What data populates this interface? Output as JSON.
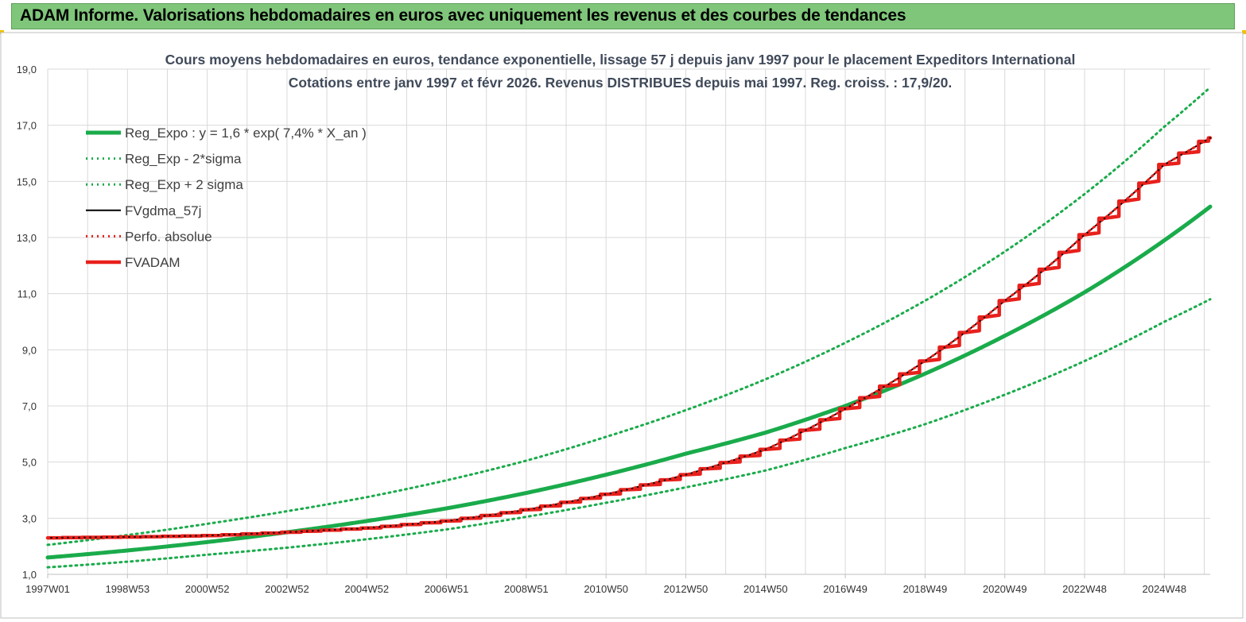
{
  "header": {
    "title": "ADAM Informe. Valorisations hebdomadaires en euros avec uniquement les revenus et des courbes de tendances"
  },
  "colors": {
    "banner": "#7fc67a",
    "trend_green": "#1aab4b",
    "fvgdma_black": "#000000",
    "fvadam_red": "#e8201c",
    "perfo_red": "#e8201c",
    "grid": "#d9d9d9"
  },
  "chart_data": {
    "type": "line",
    "title": [
      "Cours moyens hebdomadaires en euros, tendance exponentielle, lissage 57 j depuis janv 1997 pour le placement Expeditors International",
      "Cotations entre janv 1997 et févr 2026. Revenus DISTRIBUES depuis mai 1997. Reg. croiss. : 17,9/20."
    ],
    "xlabel": "",
    "ylabel": "",
    "x_range_years": [
      1997.0,
      2026.15
    ],
    "ylim": [
      1.0,
      19.0
    ],
    "y_ticks": [
      "1,0",
      "3,0",
      "5,0",
      "7,0",
      "9,0",
      "11,0",
      "13,0",
      "15,0",
      "17,0",
      "19,0"
    ],
    "y_tick_values": [
      1,
      3,
      5,
      7,
      9,
      11,
      13,
      15,
      17,
      19
    ],
    "x_tick_labels": [
      "1997W01",
      "1998W53",
      "2000W52",
      "2002W52",
      "2004W52",
      "2006W51",
      "2008W51",
      "2010W50",
      "2012W50",
      "2014W50",
      "2016W49",
      "2018W49",
      "2020W49",
      "2022W48",
      "2024W48"
    ],
    "x_tick_years": [
      1997.0,
      1999.0,
      2001.0,
      2003.0,
      2005.0,
      2007.0,
      2009.0,
      2011.0,
      2013.0,
      2015.0,
      2017.0,
      2019.0,
      2021.0,
      2023.0,
      2025.0
    ],
    "grid": true,
    "legend_position": "top-left",
    "series": [
      {
        "name": "Reg_Expo : y = 1,6 * exp( 7,4% *  X_an )",
        "style": "solid-thick",
        "color": "#1aab4b",
        "x": [
          1997,
          1999,
          2001,
          2003,
          2005,
          2007,
          2009,
          2011,
          2013,
          2015,
          2017,
          2019,
          2021,
          2023,
          2025,
          2026.15
        ],
        "values": [
          1.6,
          1.85,
          2.15,
          2.5,
          2.9,
          3.35,
          3.9,
          4.55,
          5.3,
          6.05,
          7.0,
          8.15,
          9.5,
          11.05,
          12.9,
          14.1
        ]
      },
      {
        "name": "Reg_Exp - 2*sigma",
        "style": "dotted",
        "color": "#1aab4b",
        "x": [
          1997,
          1999,
          2001,
          2003,
          2005,
          2007,
          2009,
          2011,
          2013,
          2015,
          2017,
          2019,
          2021,
          2023,
          2025,
          2026.15
        ],
        "values": [
          1.25,
          1.45,
          1.7,
          1.95,
          2.25,
          2.6,
          3.05,
          3.55,
          4.1,
          4.7,
          5.5,
          6.35,
          7.4,
          8.6,
          10.0,
          10.8
        ]
      },
      {
        "name": "Reg_Exp + 2 sigma",
        "style": "dotted",
        "color": "#1aab4b",
        "x": [
          1997,
          1999,
          2001,
          2003,
          2005,
          2007,
          2009,
          2011,
          2013,
          2015,
          2017,
          2019,
          2021,
          2023,
          2025,
          2026.15
        ],
        "values": [
          2.05,
          2.4,
          2.8,
          3.25,
          3.75,
          4.35,
          5.05,
          5.9,
          6.85,
          7.95,
          9.25,
          10.75,
          12.5,
          14.55,
          16.95,
          18.35
        ]
      },
      {
        "name": "FVgdma_57j",
        "style": "solid-thin",
        "color": "#000000",
        "x": [
          1997,
          1999,
          2001,
          2003,
          2005,
          2007,
          2009,
          2011,
          2013,
          2015,
          2017,
          2019,
          2021,
          2023,
          2025,
          2026.15
        ],
        "values": [
          2.3,
          2.33,
          2.38,
          2.5,
          2.65,
          2.9,
          3.3,
          3.85,
          4.55,
          5.45,
          6.9,
          8.6,
          10.75,
          13.1,
          15.6,
          16.55
        ]
      },
      {
        "name": "Perfo. absolue",
        "style": "dotted",
        "color": "#e8201c",
        "x": [
          1997,
          1999,
          2001,
          2003,
          2005,
          2007,
          2009,
          2011,
          2013,
          2015,
          2017,
          2019,
          2021,
          2023,
          2025,
          2026.15
        ],
        "values": [
          2.3,
          2.33,
          2.38,
          2.5,
          2.65,
          2.9,
          3.3,
          3.85,
          4.55,
          5.45,
          6.9,
          8.6,
          10.75,
          13.1,
          15.6,
          16.55
        ]
      },
      {
        "name": "FVADAM",
        "style": "solid-thick-stepped",
        "color": "#e8201c",
        "x": [
          1997,
          1999,
          2001,
          2003,
          2005,
          2007,
          2009,
          2011,
          2013,
          2015,
          2017,
          2019,
          2021,
          2023,
          2025,
          2026.15
        ],
        "values": [
          2.3,
          2.33,
          2.38,
          2.5,
          2.65,
          2.9,
          3.3,
          3.85,
          4.55,
          5.45,
          6.9,
          8.6,
          10.75,
          13.1,
          15.6,
          16.55
        ]
      }
    ]
  }
}
